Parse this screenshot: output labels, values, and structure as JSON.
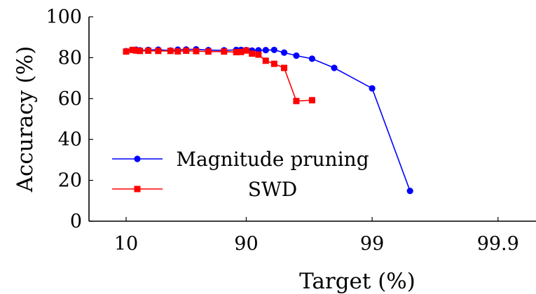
{
  "chart_data": {
    "type": "line",
    "xlabel": "Target (%)",
    "ylabel": "Accuracy (%)",
    "ylim": [
      0,
      100
    ],
    "y_ticks": [
      "0",
      "20",
      "40",
      "60",
      "80",
      "100"
    ],
    "x_ticks": [
      "10",
      "90",
      "99",
      "99.9"
    ],
    "x_scale": "log of (100 - target)",
    "grid": false,
    "legend": "left-bottom inside plot",
    "series": [
      {
        "name": "Magnitude pruning",
        "color": "#0000ff",
        "marker": "circle",
        "x": [
          10,
          20,
          25,
          30,
          40,
          50,
          60,
          65,
          70,
          75,
          80,
          85,
          88,
          89,
          90,
          91,
          92,
          93,
          94,
          95,
          96,
          97,
          98,
          99,
          99.5,
          99.9
        ],
        "y": [
          83.2,
          83.8,
          83.9,
          83.6,
          83.8,
          83.9,
          83.5,
          83.9,
          84.0,
          84.1,
          83.7,
          83.6,
          83.8,
          83.8,
          83.7,
          83.5,
          83.6,
          83.7,
          83.8,
          82.5,
          81.0,
          79.5,
          75.0,
          65.0,
          14.8,
          null
        ]
      },
      {
        "name": "SWD",
        "color": "#ff0000",
        "marker": "square",
        "x": [
          10,
          20,
          25,
          30,
          40,
          50,
          60,
          65,
          70,
          75,
          80,
          85,
          88,
          89,
          90,
          91,
          92,
          93,
          94,
          95,
          96,
          97,
          98,
          99,
          99.5,
          99.9
        ],
        "y": [
          83.0,
          83.8,
          83.5,
          83.3,
          83.4,
          83.3,
          83.3,
          83.1,
          83.4,
          83.2,
          83.0,
          83.0,
          82.7,
          82.8,
          83.5,
          82.0,
          81.5,
          78.5,
          77.0,
          75.0,
          58.8,
          59.2,
          null,
          null,
          null,
          null
        ]
      }
    ]
  }
}
